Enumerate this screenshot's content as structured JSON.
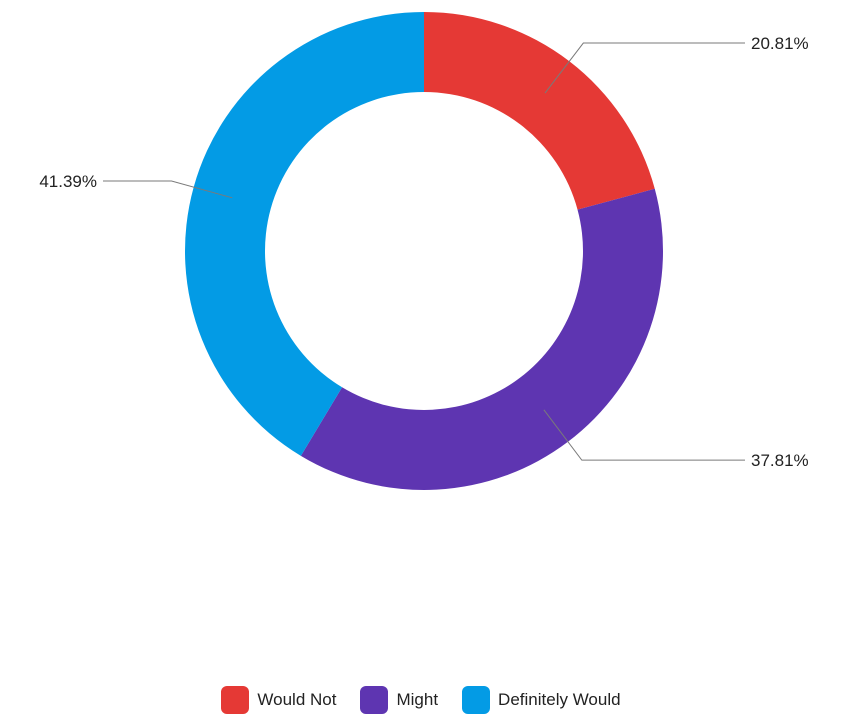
{
  "chart_data": {
    "type": "pie",
    "donut": true,
    "categories": [
      "Would Not",
      "Might",
      "Definitely Would"
    ],
    "values": [
      20.81,
      37.81,
      41.39
    ],
    "data_labels": [
      "20.81%",
      "37.81%",
      "41.39%"
    ],
    "colors": [
      "#e53935",
      "#5e35b1",
      "#039be5"
    ],
    "legend_position": "bottom",
    "title": ""
  },
  "legend": {
    "items": [
      {
        "label": "Would Not",
        "color": "#e53935"
      },
      {
        "label": "Might",
        "color": "#5e35b1"
      },
      {
        "label": "Definitely Would",
        "color": "#039be5"
      }
    ]
  }
}
